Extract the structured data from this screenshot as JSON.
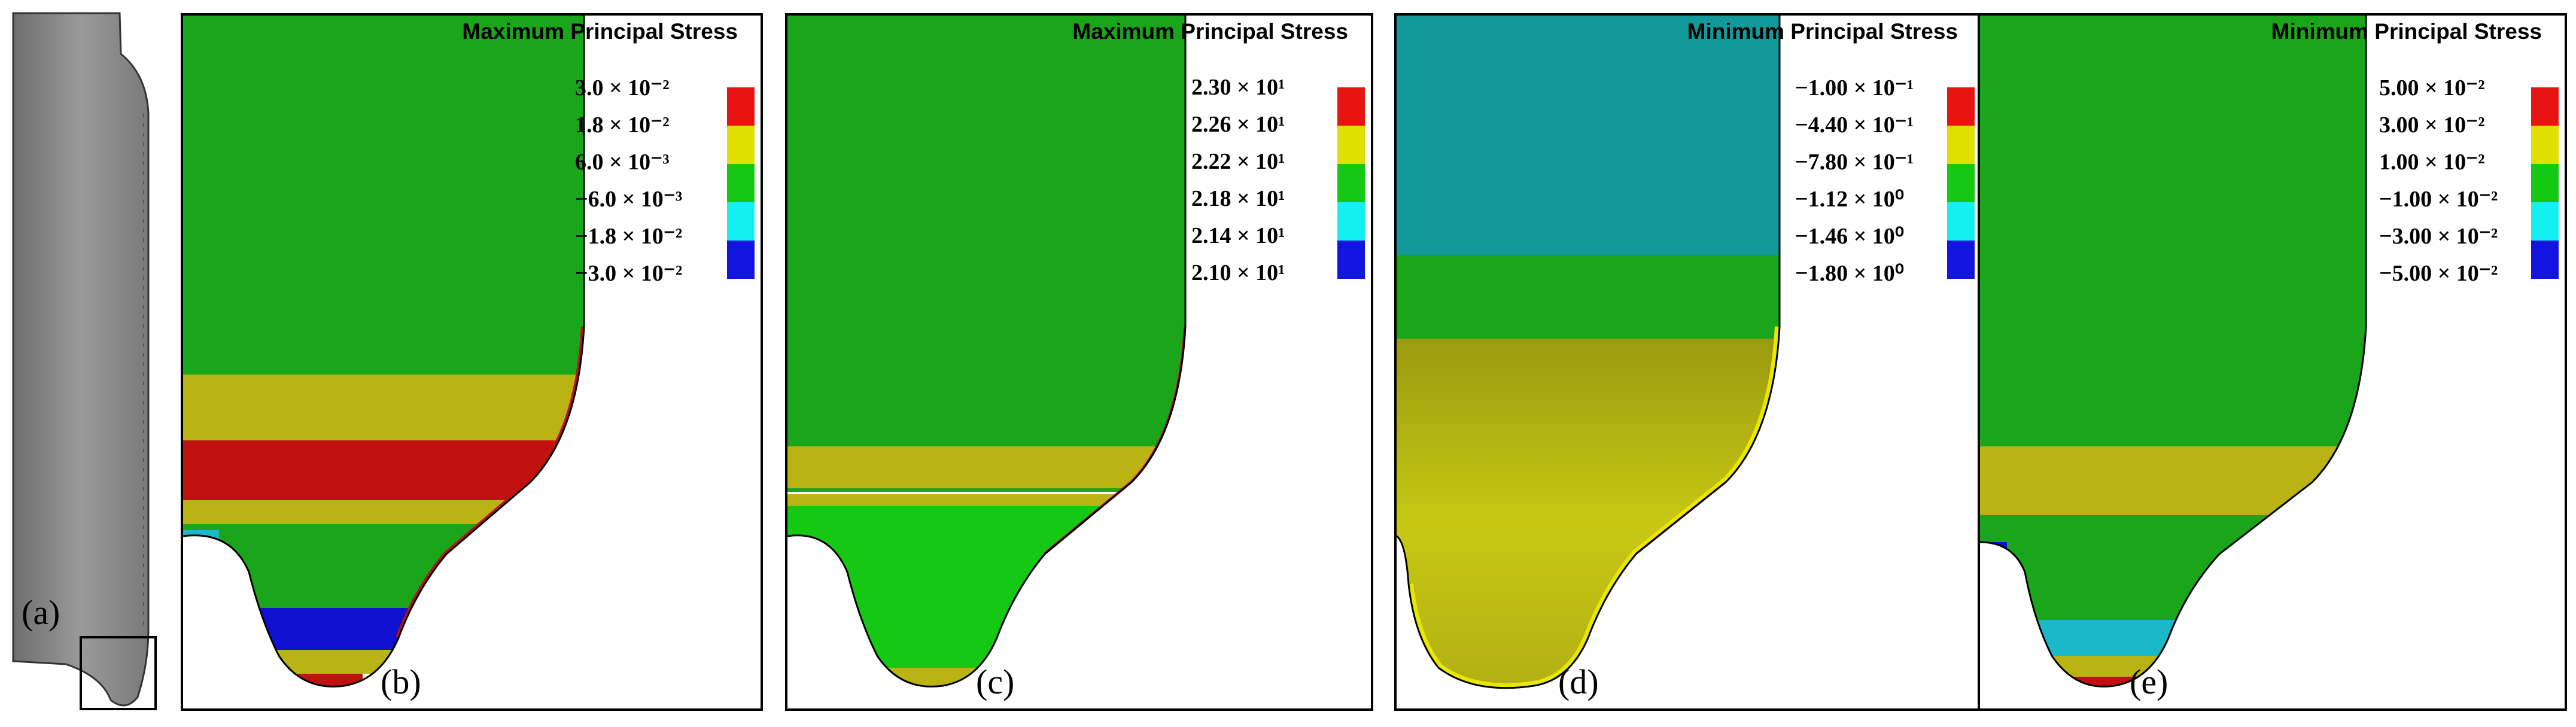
{
  "panels": {
    "a": {
      "label": "(a)"
    },
    "b": {
      "label": "(b)",
      "title": "Maximum Principal Stress",
      "legend": [
        "3.0 × 10⁻²",
        "1.8 × 10⁻²",
        "6.0 × 10⁻³",
        "−6.0 × 10⁻³",
        "−1.8 × 10⁻²",
        "−3.0 × 10⁻²"
      ]
    },
    "c": {
      "label": "(c)",
      "title": "Maximum Principal Stress",
      "legend": [
        "2.30 × 10¹",
        "2.26 × 10¹",
        "2.22 × 10¹",
        "2.18 × 10¹",
        "2.14 × 10¹",
        "2.10 × 10¹"
      ]
    },
    "d": {
      "label": "(d)",
      "title": "Minimum Principal Stress",
      "legend": [
        "−1.00 × 10⁻¹",
        "−4.40 × 10⁻¹",
        "−7.80 × 10⁻¹",
        "−1.12 × 10⁰",
        "−1.46 × 10⁰",
        "−1.80 × 10⁰"
      ]
    },
    "e": {
      "label": "(e)",
      "title": "Minimum Principal Stress",
      "legend": [
        "5.00 × 10⁻²",
        "3.00 × 10⁻²",
        "1.00 × 10⁻²",
        "−1.00 × 10⁻²",
        "−3.00 × 10⁻²",
        "−5.00 × 10⁻²"
      ]
    }
  },
  "colors": {
    "legend_scale": [
      "#e81414",
      "#f0d400",
      "#e0e000",
      "#14c814",
      "#14f0f0",
      "#1414e0"
    ],
    "contour_green": "#1aa51a",
    "contour_olive": "#b9b414",
    "contour_red": "#c01010",
    "contour_blue": "#1010d0",
    "contour_teal": "#129a9a",
    "contour_cyan": "#1ab8c8",
    "part_gray": "#8c8c8c"
  }
}
